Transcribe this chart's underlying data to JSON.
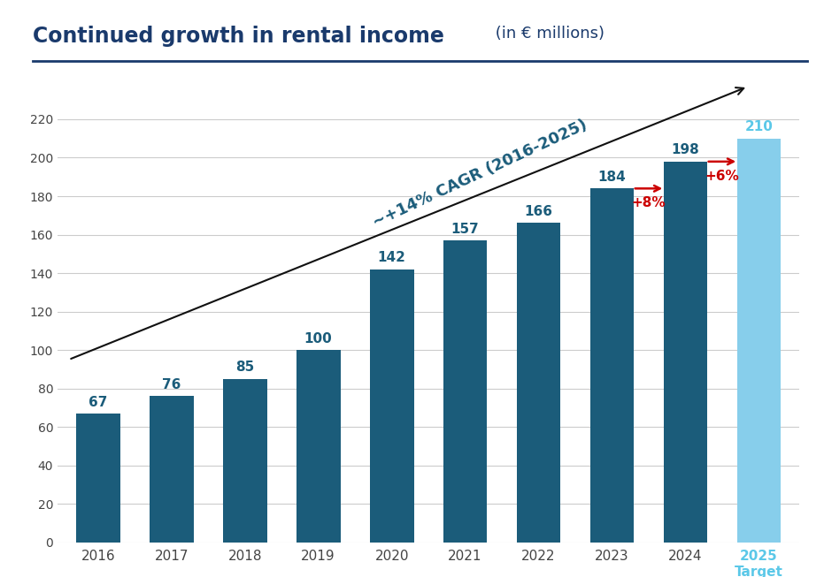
{
  "title_bold": "Continued growth in rental income",
  "title_normal": " (in € millions)",
  "years": [
    "2016",
    "2017",
    "2018",
    "2019",
    "2020",
    "2021",
    "2022",
    "2023",
    "2024",
    "2025\nTarget"
  ],
  "values": [
    67,
    76,
    85,
    100,
    142,
    157,
    166,
    184,
    198,
    210
  ],
  "bar_colors": [
    "#1b5c7a",
    "#1b5c7a",
    "#1b5c7a",
    "#1b5c7a",
    "#1b5c7a",
    "#1b5c7a",
    "#1b5c7a",
    "#1b5c7a",
    "#1b5c7a",
    "#87ceeb"
  ],
  "dark_blue": "#1b5c7a",
  "label_color_dark": "#1b5c7a",
  "label_color_light": "#5bc8e8",
  "title_color": "#1a3a6c",
  "arrow_color": "#cc0000",
  "line_color": "#111111",
  "cagr_label": "~+14% CAGR (2016-2025)",
  "cagr_color": "#1b5c7a",
  "pct_8": "+8%",
  "pct_6": "+6%",
  "ylim": [
    0,
    240
  ],
  "yticks": [
    0,
    20,
    40,
    60,
    80,
    100,
    120,
    140,
    160,
    180,
    200,
    220
  ],
  "background_color": "#ffffff",
  "grid_color": "#cccccc",
  "separator_color": "#1a3a6c"
}
